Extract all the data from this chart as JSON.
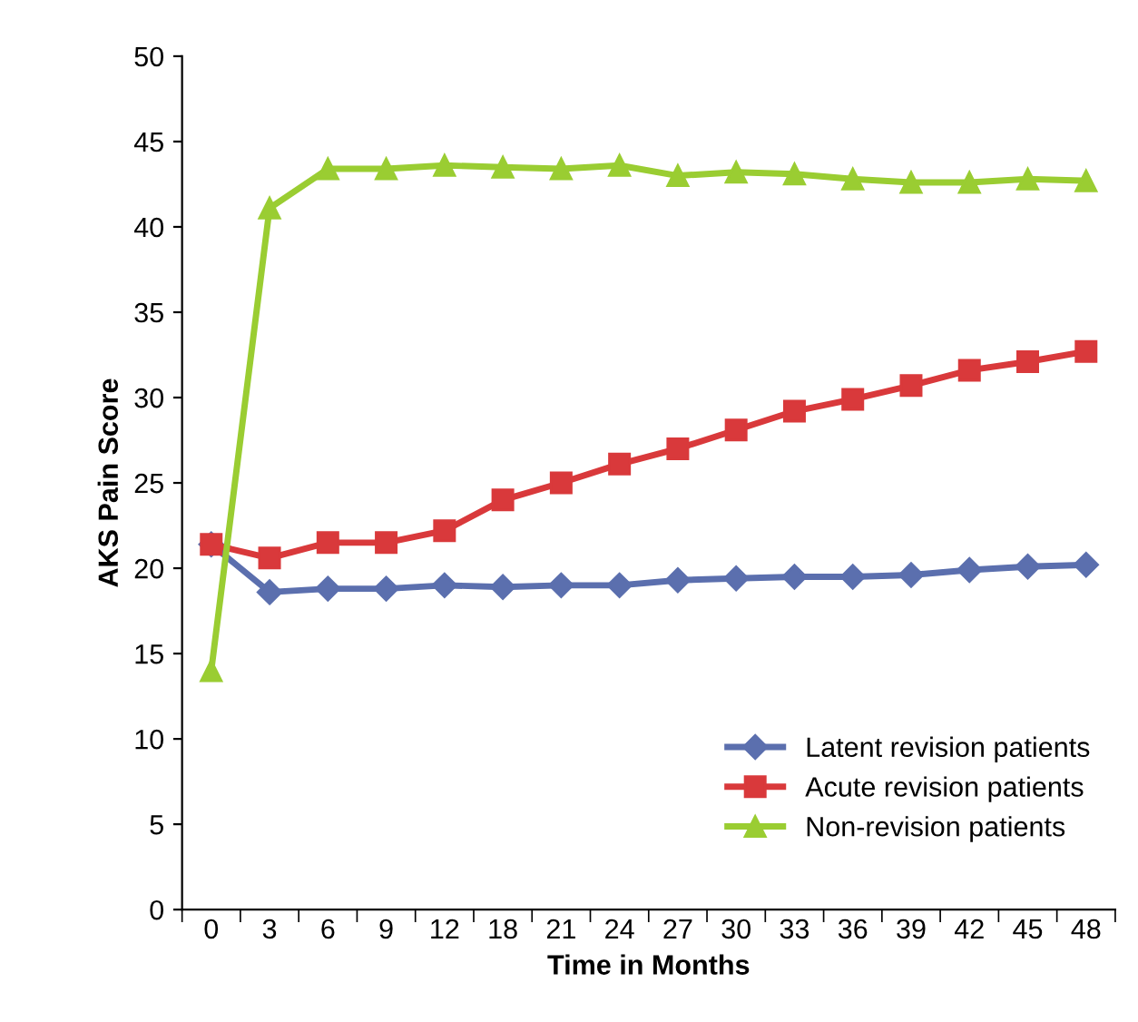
{
  "chart_data": {
    "type": "line",
    "xlabel": "Time in Months",
    "ylabel": "AKS Pain Score",
    "categories": [
      "0",
      "3",
      "6",
      "9",
      "12",
      "18",
      "21",
      "24",
      "27",
      "30",
      "33",
      "36",
      "39",
      "42",
      "45",
      "48"
    ],
    "series": [
      {
        "name": "Latent revision patients",
        "color": "#5b6fae",
        "marker": "diamond",
        "values": [
          21.4,
          18.6,
          18.8,
          18.8,
          19.0,
          18.9,
          19.0,
          19.0,
          19.3,
          19.4,
          19.5,
          19.5,
          19.6,
          19.9,
          20.1,
          20.2
        ]
      },
      {
        "name": "Acute revision patients",
        "color": "#d9393b",
        "marker": "square",
        "values": [
          21.4,
          20.6,
          21.5,
          21.5,
          22.2,
          24.0,
          25.0,
          26.1,
          27.0,
          28.1,
          29.2,
          29.9,
          30.7,
          31.6,
          32.1,
          32.7
        ]
      },
      {
        "name": "Non-revision patients",
        "color": "#9acd32",
        "marker": "triangle",
        "values": [
          14.0,
          41.1,
          43.4,
          43.4,
          43.6,
          43.5,
          43.4,
          43.6,
          43.0,
          43.2,
          43.1,
          42.8,
          42.6,
          42.6,
          42.8,
          42.7
        ]
      }
    ],
    "ylim": [
      0,
      50
    ],
    "yticks": [
      0,
      5,
      10,
      15,
      20,
      25,
      30,
      35,
      40,
      45,
      50
    ],
    "grid": false,
    "legend": "bottom right",
    "line_style": "solid"
  }
}
